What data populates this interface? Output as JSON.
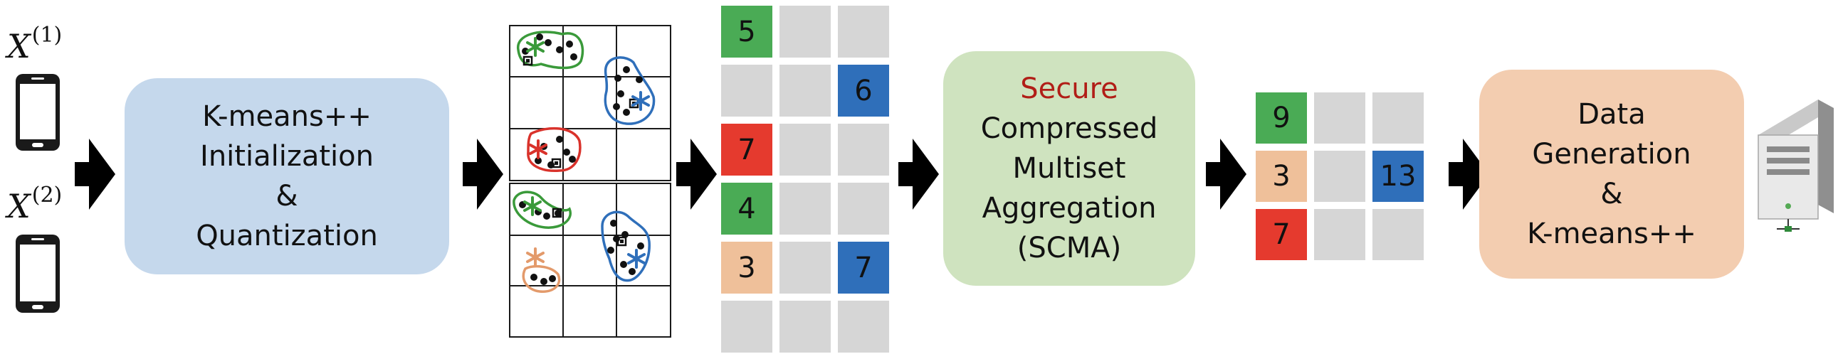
{
  "clients": {
    "x1": {
      "symbol": "X",
      "superscript": "(1)"
    },
    "x2": {
      "symbol": "X",
      "superscript": "(2)"
    }
  },
  "stages": {
    "init_box": {
      "lines": [
        "K-means++",
        "Initialization",
        "&",
        "Quantization"
      ]
    },
    "scma_box": {
      "highlight": "Secure",
      "lines": [
        "Compressed",
        "Multiset",
        "Aggregation",
        "(SCMA)"
      ]
    },
    "gen_box": {
      "lines": [
        "Data",
        "Generation",
        "&",
        "K-means++"
      ]
    }
  },
  "histogram_client": {
    "cells": [
      {
        "row": 0,
        "col": 0,
        "value": "5",
        "color": "#4aab55"
      },
      {
        "row": 1,
        "col": 2,
        "value": "6",
        "color": "#2f6fba"
      },
      {
        "row": 2,
        "col": 0,
        "value": "7",
        "color": "#e53a2e"
      },
      {
        "row": 3,
        "col": 0,
        "value": "4",
        "color": "#4aab55"
      },
      {
        "row": 4,
        "col": 0,
        "value": "3",
        "color": "#efc09a"
      },
      {
        "row": 4,
        "col": 2,
        "value": "7",
        "color": "#2f6fba"
      }
    ]
  },
  "histogram_aggregate": {
    "cells": [
      {
        "row": 0,
        "col": 0,
        "value": "9",
        "color": "#4aab55"
      },
      {
        "row": 1,
        "col": 0,
        "value": "3",
        "color": "#efc09a"
      },
      {
        "row": 1,
        "col": 2,
        "value": "13",
        "color": "#2f6fba"
      },
      {
        "row": 2,
        "col": 0,
        "value": "7",
        "color": "#e53a2e"
      }
    ]
  },
  "colors": {
    "init_box": "#c5d8ec",
    "scma_box": "#cfe3bf",
    "gen_box": "#f3cdb0",
    "secure_text": "#b11e17",
    "empty_cell": "#d6d6d6",
    "green": "#3a9a3a",
    "blue": "#2f6fba",
    "red": "#d9322b",
    "orange": "#e39a6b"
  },
  "icons": [
    "phone-icon",
    "arrow-right-icon",
    "server-icon",
    "asterisk-icon"
  ]
}
